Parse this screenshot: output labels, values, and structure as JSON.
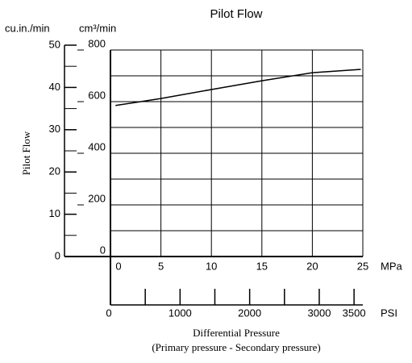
{
  "chart_data": {
    "type": "line",
    "title": "Pilot Flow",
    "y_label": "Pilot Flow",
    "y_unit": "cm³/min",
    "y2_unit": "cu.in./min",
    "x_unit": "MPa",
    "x2_unit": "PSI",
    "x_label": "Differential Pressure",
    "x_sublabel": "(Primary pressure - Secondary pressure)",
    "x": [
      0.5,
      5,
      10,
      15,
      20,
      24.8
    ],
    "series": [
      {
        "color": "#000000",
        "values": [
          585,
          612,
          647,
          681,
          712,
          725
        ]
      }
    ],
    "xlim": [
      0,
      25
    ],
    "xticks": [
      0,
      5,
      10,
      15,
      20,
      25
    ],
    "ylim": [
      0,
      800
    ],
    "yticks": [
      0,
      200,
      400,
      600,
      800
    ],
    "y_minor_ticks": [
      100,
      300,
      500,
      700
    ],
    "y2lim": [
      0,
      50
    ],
    "y2ticks": [
      0,
      10,
      20,
      30,
      40,
      50
    ],
    "y2_minor_ticks": [
      5,
      15,
      25,
      35,
      45
    ],
    "x2lim": [
      0,
      3626
    ],
    "x2ticks": [
      0,
      1000,
      2000,
      3000,
      3500
    ],
    "x2_minor_ticks": [
      500,
      1500,
      2500
    ],
    "grid": true
  }
}
